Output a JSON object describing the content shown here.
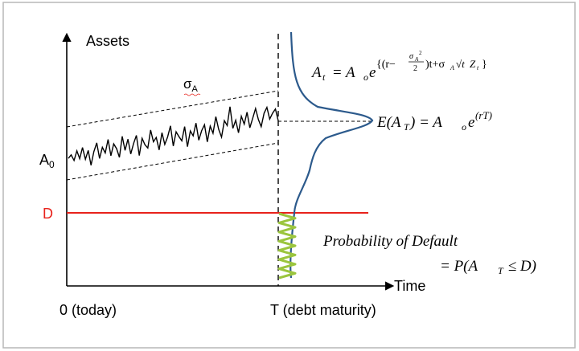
{
  "labels": {
    "y_axis": "Assets",
    "x_axis": "Time",
    "x_origin": "0 (today)",
    "x_maturity": "T (debt maturity)",
    "initial_value": "A",
    "initial_value_sub": "0",
    "debt_level": "D",
    "volatility": "σ",
    "volatility_sub": "A"
  },
  "formulas": {
    "asset_process": {
      "lhs": "A",
      "lhs_sub": "t",
      "eq": " = A",
      "base_sub": "o",
      "e": "e",
      "exponent_pre": "{(r−",
      "frac_num": "σ",
      "frac_num_sub": "A",
      "frac_num_sup": "2",
      "frac_den": "2",
      "exponent_mid": ")t+σ",
      "exp_sub_a": "A",
      "sqrt_t": "√t",
      "z": "Z",
      "z_sub": "t",
      "exponent_post": "}"
    },
    "expected_value": {
      "lhs": "E(A",
      "lhs_sub": "T",
      "mid": ") = A",
      "base_sub": "o",
      "e": "e",
      "exponent": "(rT)"
    },
    "default_probability": {
      "line1": "Probability of Default",
      "line2_prefix": "= P(A",
      "line2_sub": "T",
      "line2_suffix": " ≤ D)"
    }
  },
  "colors": {
    "debt_line": "#e8221b",
    "debt_label": "#e8221b",
    "distribution": "#2c5a8c",
    "default_zone": "#9bc53d",
    "path": "#000000",
    "axes": "#000000",
    "frame": "#b7b7b7"
  },
  "path_values": [
    0.15,
    0.35,
    -0.05,
    0.55,
    0.0,
    0.7,
    -0.1,
    0.45,
    -0.55,
    0.3,
    0.85,
    -0.2,
    0.5,
    0.1,
    0.95,
    -0.15,
    0.6,
    0.25,
    -0.35,
    1.0,
    0.05,
    0.75,
    -0.25,
    0.4,
    0.9,
    -0.45,
    0.65,
    0.2,
    -0.05,
    1.1,
    0.3,
    0.55,
    -0.3,
    0.8,
    0.0,
    0.45,
    1.15,
    -0.2,
    0.7,
    0.35,
    0.05,
    0.95,
    -0.4,
    0.6,
    0.25,
    1.05,
    -0.1,
    0.5,
    0.85,
    -0.3,
    0.7,
    0.2,
    1.25,
    0.4,
    -0.15,
    0.9,
    0.55,
    1.75,
    0.3,
    0.8,
    -0.05,
    1.0,
    0.45,
    1.2,
    0.15,
    0.75,
    1.35,
    0.6,
    0.1,
    0.95,
    1.3,
    0.5,
    0.85,
    1.1,
    0.3
  ]
}
